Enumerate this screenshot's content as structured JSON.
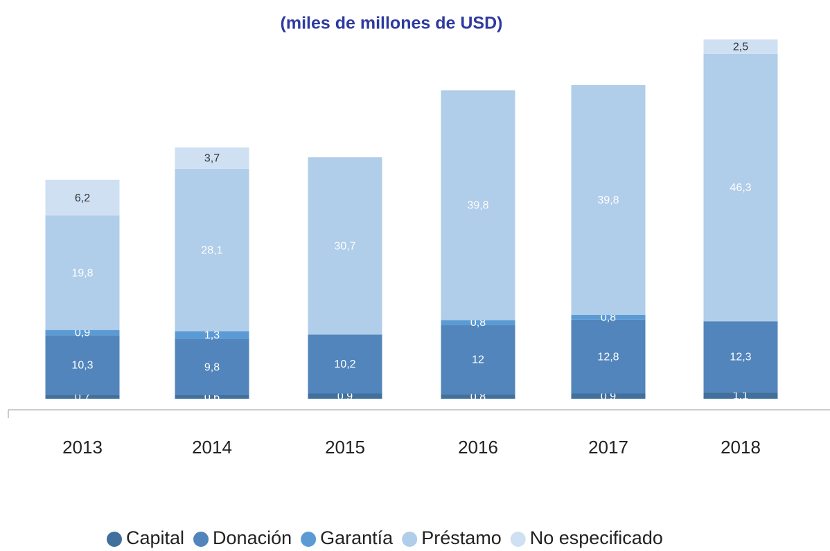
{
  "chart_data": {
    "type": "stacked_bar",
    "title": "(miles de millones de USD)",
    "categories": [
      "2013",
      "2014",
      "2015",
      "2016",
      "2017",
      "2018"
    ],
    "series": [
      {
        "name": "Capital",
        "color": "#41709c",
        "values": [
          0.7,
          0.6,
          0.9,
          0.8,
          0.9,
          1.1
        ],
        "value_labels": [
          "0,7",
          "0,6",
          "0,9",
          "0,8",
          "0,9",
          "1,1"
        ]
      },
      {
        "name": "Donación",
        "color": "#5185bb",
        "values": [
          10.3,
          9.8,
          10.2,
          12,
          12.8,
          12.3
        ],
        "value_labels": [
          "10,3",
          "9,8",
          "10,2",
          "12",
          "12,8",
          "12,3"
        ]
      },
      {
        "name": "Garantía",
        "color": "#5b9bd5",
        "values": [
          0.9,
          1.3,
          null,
          0.8,
          0.8,
          null
        ],
        "value_labels": [
          "0,9",
          "1,3",
          null,
          "0,8",
          "0,8",
          null
        ]
      },
      {
        "name": "Préstamo",
        "color": "#b0cde9",
        "values": [
          19.8,
          28.1,
          30.7,
          39.8,
          39.8,
          46.3
        ],
        "value_labels": [
          "19,8",
          "28,1",
          "30,7",
          "39,8",
          "39,8",
          "46,3"
        ]
      },
      {
        "name": "No especificado",
        "color": "#cfe0f2",
        "values": [
          6.2,
          3.7,
          null,
          null,
          null,
          2.5
        ],
        "value_labels": [
          "6,2",
          "3,7",
          null,
          null,
          null,
          "2,5"
        ]
      }
    ],
    "legend": "bottom"
  }
}
